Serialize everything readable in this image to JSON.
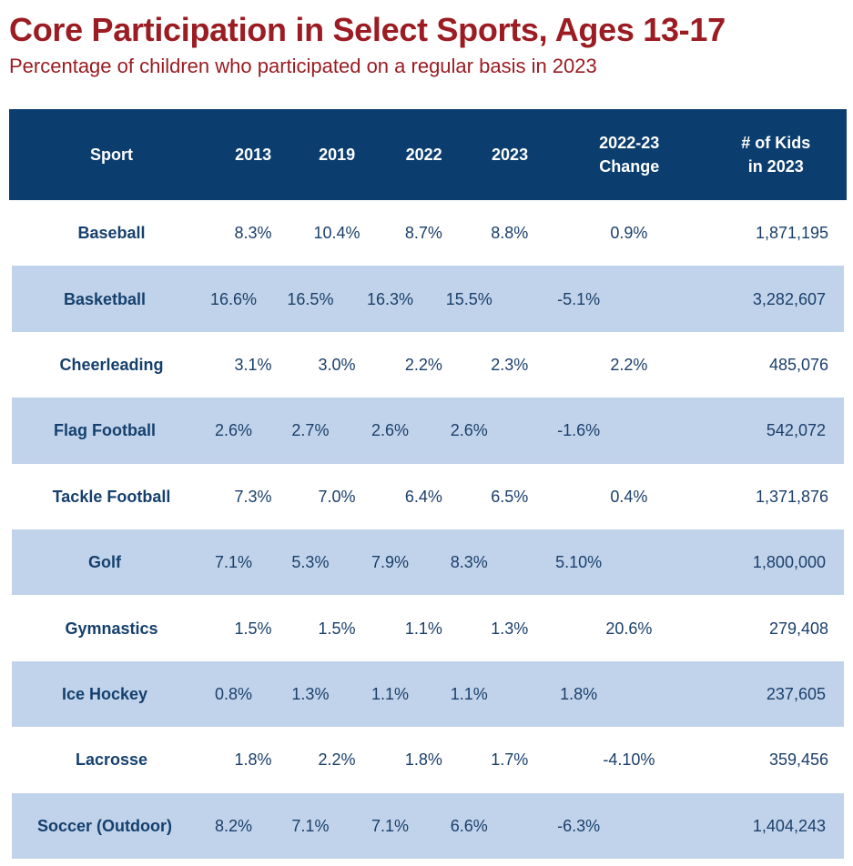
{
  "title": "Core Participation in Select Sports, Ages 13-17",
  "subtitle": "Percentage of children who participated on a regular basis in 2023",
  "colors": {
    "title": "#9b1c22",
    "header_bg": "#0b3e6f",
    "stripe_bg": "#c1d3ea",
    "body_text": "#1a3f6b"
  },
  "chart_data": {
    "type": "table",
    "title": "Core Participation in Select Sports, Ages 13-17",
    "subtitle": "Percentage of children who participated on a regular basis in 2023",
    "columns": [
      "Sport",
      "2013",
      "2019",
      "2022",
      "2023",
      "2022-23\nChange",
      "# of Kids\nin 2023"
    ],
    "header": {
      "sport": "Sport",
      "y2013": "2013",
      "y2019": "2019",
      "y2022": "2022",
      "y2023": "2023",
      "change_line1": "2022-23",
      "change_line2": "Change",
      "kids_line1": "# of Kids",
      "kids_line2": "in 2023"
    },
    "rows": [
      {
        "sport": "Baseball",
        "y2013": "8.3%",
        "y2019": "10.4%",
        "y2022": "8.7%",
        "y2023": "8.8%",
        "change": "0.9%",
        "kids": "1,871,195"
      },
      {
        "sport": "Basketball",
        "y2013": "16.6%",
        "y2019": "16.5%",
        "y2022": "16.3%",
        "y2023": "15.5%",
        "change": "-5.1%",
        "kids": "3,282,607"
      },
      {
        "sport": "Cheerleading",
        "y2013": "3.1%",
        "y2019": "3.0%",
        "y2022": "2.2%",
        "y2023": "2.3%",
        "change": "2.2%",
        "kids": "485,076"
      },
      {
        "sport": "Flag Football",
        "y2013": "2.6%",
        "y2019": "2.7%",
        "y2022": "2.6%",
        "y2023": "2.6%",
        "change": "-1.6%",
        "kids": "542,072"
      },
      {
        "sport": "Tackle Football",
        "y2013": "7.3%",
        "y2019": "7.0%",
        "y2022": "6.4%",
        "y2023": "6.5%",
        "change": "0.4%",
        "kids": "1,371,876"
      },
      {
        "sport": "Golf",
        "y2013": "7.1%",
        "y2019": "5.3%",
        "y2022": "7.9%",
        "y2023": "8.3%",
        "change": "5.10%",
        "kids": "1,800,000"
      },
      {
        "sport": "Gymnastics",
        "y2013": "1.5%",
        "y2019": "1.5%",
        "y2022": "1.1%",
        "y2023": "1.3%",
        "change": "20.6%",
        "kids": "279,408"
      },
      {
        "sport": "Ice Hockey",
        "y2013": "0.8%",
        "y2019": "1.3%",
        "y2022": "1.1%",
        "y2023": "1.1%",
        "change": "1.8%",
        "kids": "237,605"
      },
      {
        "sport": "Lacrosse",
        "y2013": "1.8%",
        "y2019": "2.2%",
        "y2022": "1.8%",
        "y2023": "1.7%",
        "change": "-4.10%",
        "kids": "359,456"
      },
      {
        "sport": "Soccer (Outdoor)",
        "y2013": "8.2%",
        "y2019": "7.1%",
        "y2022": "7.1%",
        "y2023": "6.6%",
        "change": "-6.3%",
        "kids": "1,404,243"
      }
    ]
  }
}
